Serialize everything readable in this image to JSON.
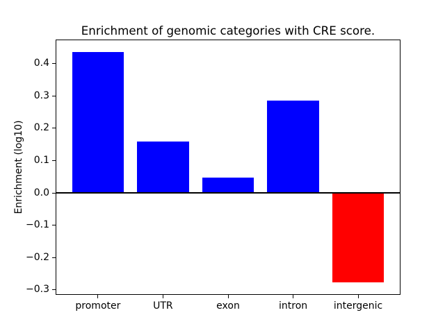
{
  "chart_data": {
    "type": "bar",
    "title": "Enrichment of genomic categories with CRE score.",
    "xlabel": "",
    "ylabel": "Enrichment (log10)",
    "categories": [
      "promoter",
      "UTR",
      "exon",
      "intron",
      "intergenic"
    ],
    "values": [
      0.437,
      0.16,
      0.048,
      0.285,
      -0.278
    ],
    "bar_colors": [
      "#0000ff",
      "#0000ff",
      "#0000ff",
      "#0000ff",
      "#ff0000"
    ],
    "bar_width": 0.8,
    "xlim": [
      -0.64,
      4.64
    ],
    "ylim": [
      -0.3138,
      0.4728
    ],
    "yticks": [
      0.4,
      0.3,
      0.2,
      0.1,
      0.0,
      -0.1,
      -0.2,
      -0.3
    ],
    "ytick_labels": [
      "0.4",
      "0.3",
      "0.2",
      "0.1",
      "0.0",
      "−0.1",
      "−0.2",
      "−0.3"
    ],
    "grid": false,
    "legend": null,
    "zero_line": {
      "color": "#000000",
      "width": 2
    },
    "spine_color": "#000000",
    "background_color": "#ffffff"
  }
}
